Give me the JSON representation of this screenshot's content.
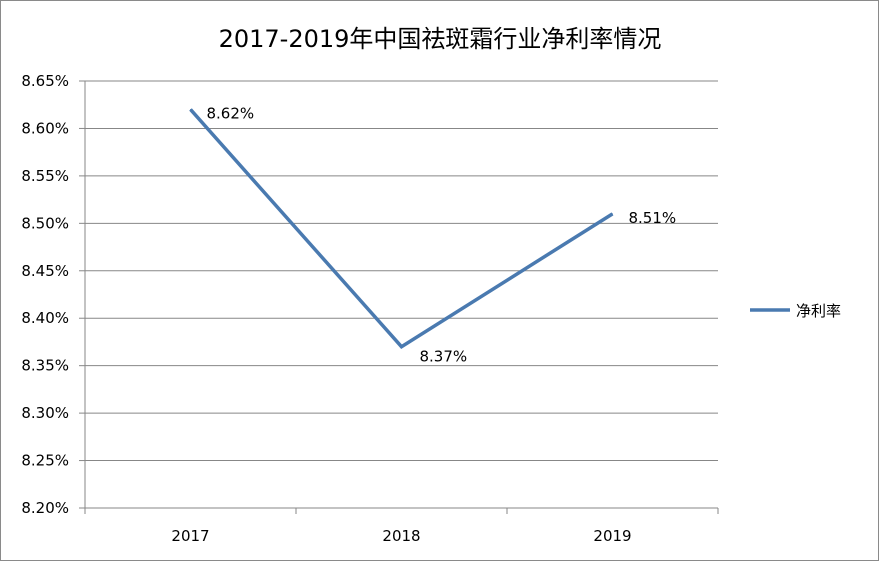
{
  "chart_data": {
    "type": "line",
    "title": "2017-2019年中国祛斑霜行业净利率情况",
    "categories": [
      "2017",
      "2018",
      "2019"
    ],
    "series": [
      {
        "name": "净利率",
        "values": [
          8.62,
          8.37,
          8.51
        ],
        "labels": [
          "8.62%",
          "8.37%",
          "8.51%"
        ],
        "color": "#4a7ab0"
      }
    ],
    "y_ticks": [
      "8.20%",
      "8.25%",
      "8.30%",
      "8.35%",
      "8.40%",
      "8.45%",
      "8.50%",
      "8.55%",
      "8.60%",
      "8.65%"
    ],
    "ylim": [
      8.2,
      8.65
    ],
    "grid": true,
    "legend": "right"
  }
}
